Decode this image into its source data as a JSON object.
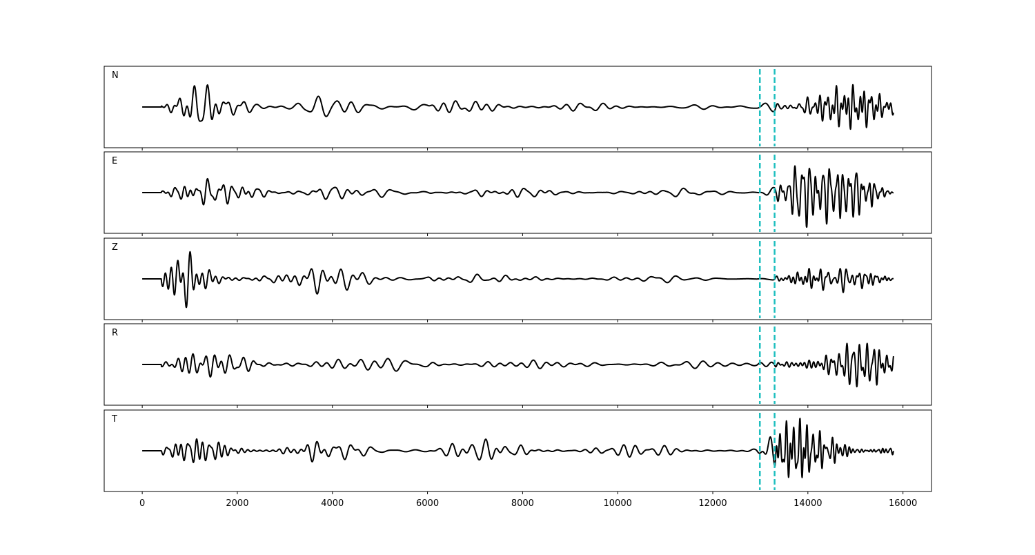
{
  "chart_data": {
    "type": "line",
    "x_ticks": [
      0,
      2000,
      4000,
      6000,
      8000,
      10000,
      12000,
      14000,
      16000
    ],
    "x_tick_labels": [
      "0",
      "2000",
      "4000",
      "6000",
      "8000",
      "10000",
      "12000",
      "14000",
      "16000"
    ],
    "xlim": [
      -800,
      16600
    ],
    "data_range": [
      0,
      15800
    ],
    "onset": 400,
    "marker_lines": [
      12990,
      13300
    ],
    "colors": {
      "trace": "#000000",
      "marker": "#1fbfbf"
    },
    "panels": [
      {
        "label": "N",
        "envelope": [
          [
            0,
            0.02
          ],
          [
            450,
            0.15
          ],
          [
            700,
            0.45
          ],
          [
            1300,
            0.55
          ],
          [
            2200,
            0.5
          ],
          [
            2600,
            0.35
          ],
          [
            4000,
            0.3
          ],
          [
            5000,
            0.25
          ],
          [
            5800,
            0.4
          ],
          [
            6500,
            0.2
          ],
          [
            8000,
            0.22
          ],
          [
            10000,
            0.12
          ],
          [
            12000,
            0.12
          ],
          [
            12900,
            0.2
          ],
          [
            13300,
            0.6
          ],
          [
            13850,
            1.0
          ],
          [
            14300,
            0.75
          ],
          [
            15000,
            0.6
          ],
          [
            15800,
            0.5
          ]
        ],
        "freq": [
          [
            0,
            1.0
          ],
          [
            2500,
            0.9
          ],
          [
            6000,
            0.7
          ],
          [
            12900,
            0.6
          ],
          [
            13300,
            0.6
          ],
          [
            15800,
            0.75
          ]
        ],
        "seed": 11
      },
      {
        "label": "E",
        "envelope": [
          [
            0,
            0.02
          ],
          [
            450,
            0.15
          ],
          [
            800,
            0.35
          ],
          [
            1500,
            0.35
          ],
          [
            2800,
            0.35
          ],
          [
            3800,
            0.3
          ],
          [
            5000,
            0.12
          ],
          [
            7000,
            0.18
          ],
          [
            9000,
            0.14
          ],
          [
            11000,
            0.1
          ],
          [
            12900,
            0.15
          ],
          [
            13300,
            0.5
          ],
          [
            13800,
            1.0
          ],
          [
            14300,
            0.55
          ],
          [
            15300,
            0.75
          ],
          [
            15800,
            0.2
          ]
        ],
        "freq": [
          [
            0,
            1.0
          ],
          [
            2500,
            0.9
          ],
          [
            6000,
            0.7
          ],
          [
            12900,
            0.6
          ],
          [
            13300,
            0.6
          ],
          [
            15800,
            0.75
          ]
        ],
        "seed": 23
      },
      {
        "label": "Z",
        "envelope": [
          [
            0,
            0.02
          ],
          [
            350,
            0.05
          ],
          [
            450,
            0.4
          ],
          [
            900,
            1.0
          ],
          [
            1600,
            0.9
          ],
          [
            2400,
            0.45
          ],
          [
            3000,
            0.35
          ],
          [
            5000,
            0.35
          ],
          [
            6000,
            0.25
          ],
          [
            8000,
            0.15
          ],
          [
            12900,
            0.08
          ],
          [
            13300,
            0.25
          ],
          [
            13850,
            0.45
          ],
          [
            15000,
            0.4
          ],
          [
            15800,
            0.3
          ]
        ],
        "freq": [
          [
            0,
            1.0
          ],
          [
            2500,
            0.9
          ],
          [
            6000,
            0.7
          ],
          [
            12900,
            0.6
          ],
          [
            13300,
            0.6
          ],
          [
            15800,
            0.75
          ]
        ],
        "seed": 37
      },
      {
        "label": "R",
        "envelope": [
          [
            0,
            0.02
          ],
          [
            450,
            0.12
          ],
          [
            900,
            0.4
          ],
          [
            1600,
            0.4
          ],
          [
            2400,
            0.3
          ],
          [
            4000,
            0.22
          ],
          [
            5800,
            0.25
          ],
          [
            7000,
            0.18
          ],
          [
            9000,
            0.12
          ],
          [
            12900,
            0.12
          ],
          [
            13300,
            0.5
          ],
          [
            13850,
            1.0
          ],
          [
            14300,
            0.6
          ],
          [
            15300,
            0.5
          ],
          [
            15800,
            0.3
          ]
        ],
        "freq": [
          [
            0,
            1.0
          ],
          [
            2500,
            0.9
          ],
          [
            6000,
            0.7
          ],
          [
            12900,
            0.6
          ],
          [
            13300,
            0.6
          ],
          [
            15800,
            0.75
          ]
        ],
        "seed": 53
      },
      {
        "label": "T",
        "envelope": [
          [
            0,
            0.02
          ],
          [
            450,
            0.12
          ],
          [
            1000,
            0.3
          ],
          [
            1900,
            0.45
          ],
          [
            2800,
            0.35
          ],
          [
            3500,
            0.45
          ],
          [
            5000,
            0.25
          ],
          [
            7000,
            0.3
          ],
          [
            9000,
            0.2
          ],
          [
            12900,
            0.1
          ],
          [
            13300,
            0.6
          ],
          [
            13900,
            1.0
          ],
          [
            14300,
            0.8
          ],
          [
            15300,
            0.7
          ],
          [
            15800,
            0.3
          ]
        ],
        "freq": [
          [
            0,
            1.0
          ],
          [
            2500,
            0.9
          ],
          [
            6000,
            0.7
          ],
          [
            12900,
            0.6
          ],
          [
            13300,
            0.6
          ],
          [
            15800,
            0.75
          ]
        ],
        "seed": 71
      }
    ]
  }
}
